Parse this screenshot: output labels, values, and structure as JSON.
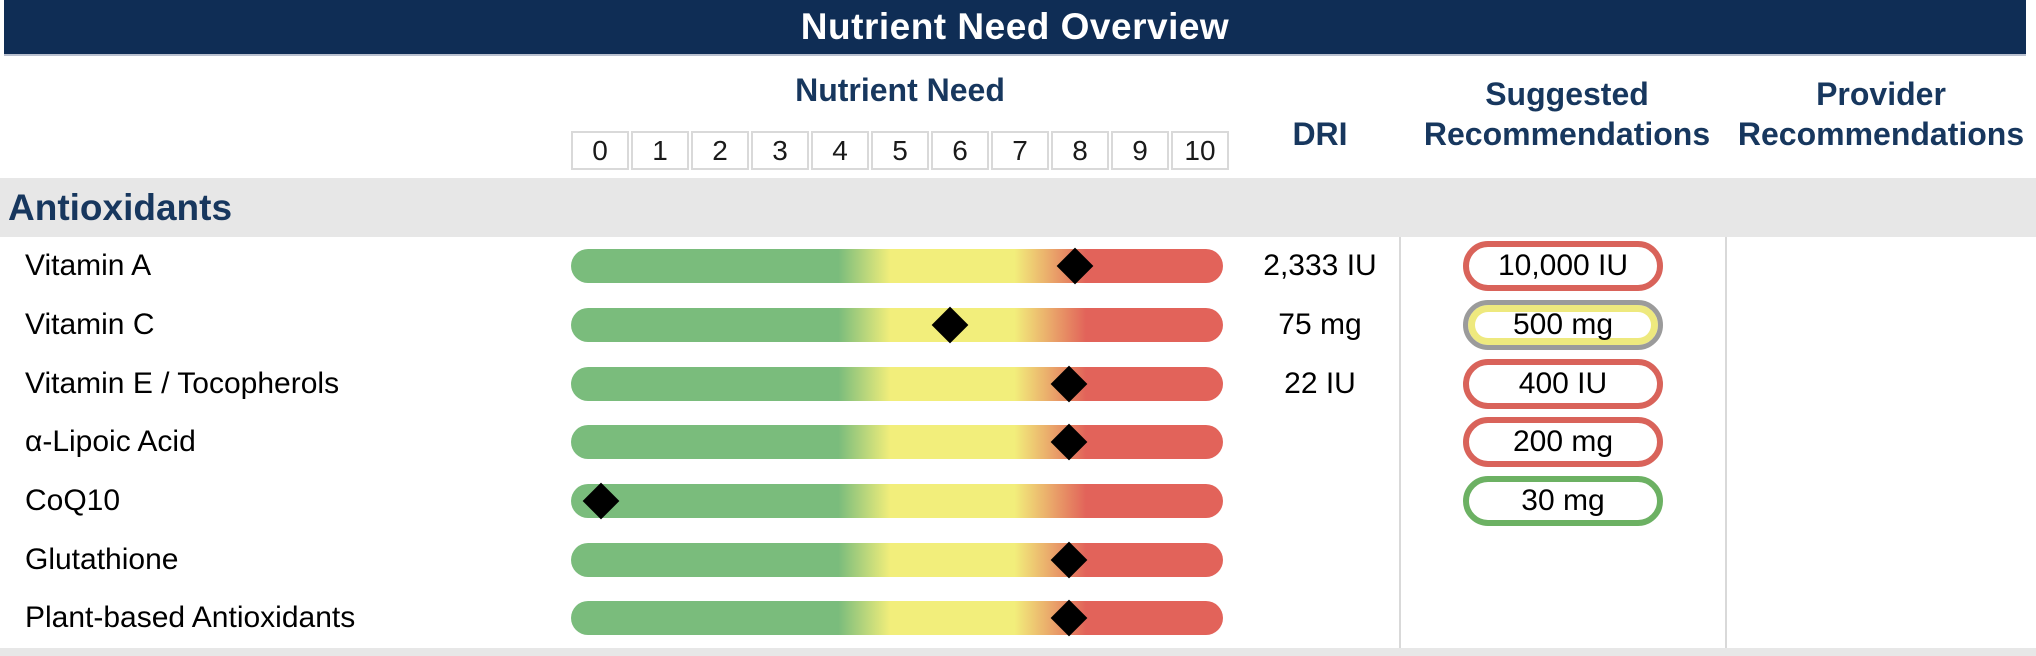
{
  "title": "Nutrient Need Overview",
  "columns": {
    "nutrient_need": "Nutrient Need",
    "dri": "DRI",
    "suggested": "Suggested Recommendations",
    "provider": "Provider Recommendations"
  },
  "scale": {
    "min": 0,
    "max": 10,
    "ticks": [
      "0",
      "1",
      "2",
      "3",
      "4",
      "5",
      "6",
      "7",
      "8",
      "9",
      "10"
    ]
  },
  "section": {
    "label": "Antioxidants"
  },
  "colors": {
    "navy": "#0f2d55",
    "navy-text": "#17375e",
    "bar-green": "#7abc7c",
    "bar-yellow": "#f2ee7b",
    "bar-red": "#e2635a",
    "pill-red": "#d9635a",
    "pill-green": "#6cb163",
    "pill-yellow": "#eee97e",
    "pill-gray": "#9b9b9b"
  },
  "rows": [
    {
      "label": "Vitamin A",
      "need": 8.0,
      "dri": "2,333 IU",
      "recommendation": {
        "text": "10,000 IU",
        "level": "red"
      }
    },
    {
      "label": "Vitamin C",
      "need": 5.9,
      "dri": "75 mg",
      "recommendation": {
        "text": "500 mg",
        "level": "yellow"
      }
    },
    {
      "label": "Vitamin E / Tocopherols",
      "need": 7.9,
      "dri": "22 IU",
      "recommendation": {
        "text": "400 IU",
        "level": "red"
      }
    },
    {
      "label": "α-Lipoic Acid",
      "need": 7.9,
      "dri": "",
      "recommendation": {
        "text": "200 mg",
        "level": "red"
      }
    },
    {
      "label": "CoQ10",
      "need": 0.0,
      "dri": "",
      "recommendation": {
        "text": "30 mg",
        "level": "green"
      }
    },
    {
      "label": "Glutathione",
      "need": 7.9,
      "dri": "",
      "recommendation": null
    },
    {
      "label": "Plant-based Antioxidants",
      "need": 7.9,
      "dri": "",
      "recommendation": null
    }
  ],
  "chart_data": {
    "type": "table",
    "title": "Nutrient Need Overview",
    "section": "Antioxidants",
    "scale_axis": {
      "label": "Nutrient Need",
      "min": 0,
      "max": 10,
      "ticks": [
        0,
        1,
        2,
        3,
        4,
        5,
        6,
        7,
        8,
        9,
        10
      ]
    },
    "columns": [
      "Nutrient Need",
      "DRI",
      "Suggested Recommendations",
      "Provider Recommendations"
    ],
    "gradient_zones": {
      "green": [
        0,
        4.1
      ],
      "yellow": [
        4.9,
        6.8
      ],
      "red": [
        7.9,
        10
      ]
    },
    "rows": [
      {
        "nutrient": "Vitamin A",
        "need_score": 8.0,
        "dri": "2,333 IU",
        "suggested": "10,000 IU",
        "suggested_status": "red",
        "provider": ""
      },
      {
        "nutrient": "Vitamin C",
        "need_score": 5.9,
        "dri": "75 mg",
        "suggested": "500 mg",
        "suggested_status": "yellow",
        "provider": ""
      },
      {
        "nutrient": "Vitamin E / Tocopherols",
        "need_score": 7.9,
        "dri": "22 IU",
        "suggested": "400 IU",
        "suggested_status": "red",
        "provider": ""
      },
      {
        "nutrient": "α-Lipoic Acid",
        "need_score": 7.9,
        "dri": "",
        "suggested": "200 mg",
        "suggested_status": "red",
        "provider": ""
      },
      {
        "nutrient": "CoQ10",
        "need_score": 0.0,
        "dri": "",
        "suggested": "30 mg",
        "suggested_status": "green",
        "provider": ""
      },
      {
        "nutrient": "Glutathione",
        "need_score": 7.9,
        "dri": "",
        "suggested": "",
        "suggested_status": "",
        "provider": ""
      },
      {
        "nutrient": "Plant-based Antioxidants",
        "need_score": 7.9,
        "dri": "",
        "suggested": "",
        "suggested_status": "",
        "provider": ""
      }
    ]
  }
}
